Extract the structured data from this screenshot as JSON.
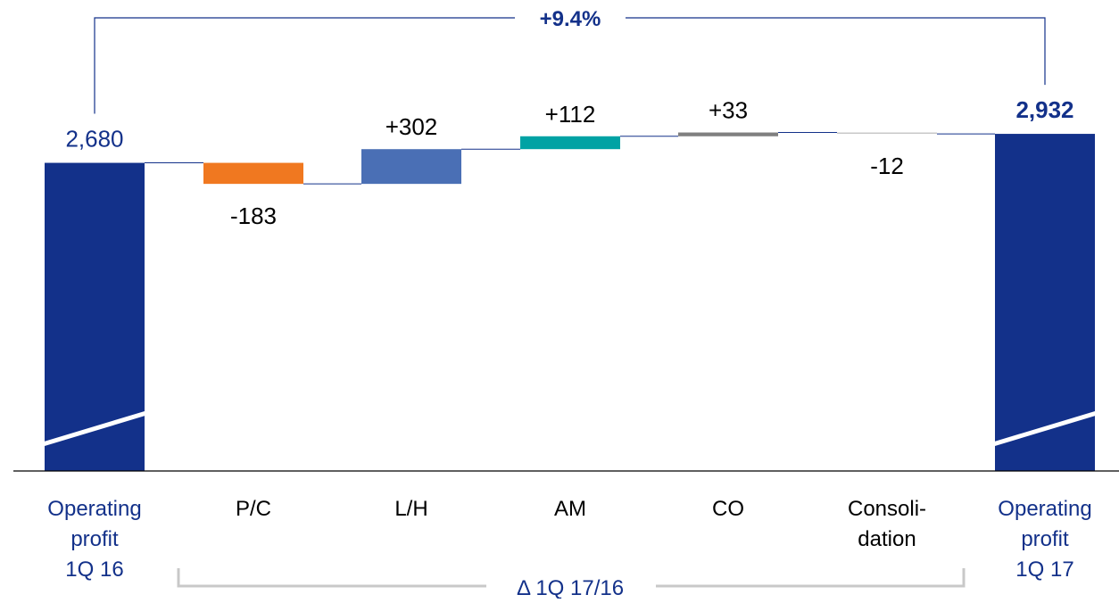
{
  "chart_data": {
    "type": "bar",
    "subtype": "waterfall",
    "categories": [
      [
        "Operating",
        "profit",
        "1Q 16"
      ],
      [
        "P/C"
      ],
      [
        "L/H"
      ],
      [
        "AM"
      ],
      [
        "CO"
      ],
      [
        "Consoli-",
        "dation"
      ],
      [
        "Operating",
        "profit",
        "1Q 17"
      ]
    ],
    "values": [
      2680,
      -183,
      302,
      112,
      33,
      -12,
      2932
    ],
    "bar_kinds": [
      "total",
      "delta",
      "delta",
      "delta",
      "delta",
      "delta",
      "total"
    ],
    "value_labels": [
      "2,680",
      "-183",
      "+302",
      "+112",
      "+33",
      "-12",
      "2,932"
    ],
    "colors": [
      "#13318a",
      "#f07820",
      "#4a6fb5",
      "#00a2a4",
      "#808080",
      "#c8c8c8",
      "#13318a"
    ],
    "label_colors": [
      "#13318a",
      "#000000",
      "#000000",
      "#000000",
      "#000000",
      "#000000",
      "#13318a"
    ],
    "category_label_colors": [
      "#13318a",
      "#000000",
      "#000000",
      "#000000",
      "#000000",
      "#000000",
      "#13318a"
    ],
    "axis_break_on_totals": true,
    "growth_annotation": "+9.4%",
    "delta_bracket_label": "Δ 1Q 17/16",
    "accent_color": "#13318a",
    "connector_color": "#13318a",
    "bracket_color": "#c8c8c8",
    "grid": false
  }
}
